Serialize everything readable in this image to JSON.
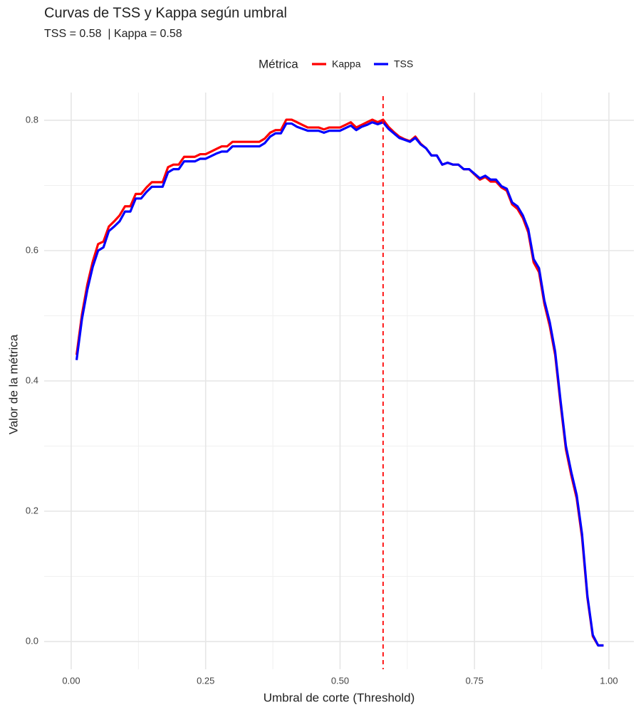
{
  "chart_data": {
    "type": "line",
    "title": "Curvas de TSS y Kappa según umbral",
    "subtitle": "TSS = 0.58  | Kappa = 0.58",
    "x_label": "Umbral de corte (Threshold)",
    "y_label": "Valor de la métrica",
    "legend_title": "Métrica",
    "legend_position": "top",
    "x": [
      0.01,
      0.02,
      0.03,
      0.04,
      0.05,
      0.06,
      0.07,
      0.08,
      0.09,
      0.1,
      0.11,
      0.12,
      0.13,
      0.14,
      0.15,
      0.16,
      0.17,
      0.18,
      0.19,
      0.2,
      0.21,
      0.22,
      0.23,
      0.24,
      0.25,
      0.26,
      0.27,
      0.28,
      0.29,
      0.3,
      0.31,
      0.32,
      0.33,
      0.34,
      0.35,
      0.36,
      0.37,
      0.38,
      0.39,
      0.4,
      0.41,
      0.42,
      0.43,
      0.44,
      0.45,
      0.46,
      0.47,
      0.48,
      0.49,
      0.5,
      0.51,
      0.52,
      0.53,
      0.54,
      0.55,
      0.56,
      0.57,
      0.58,
      0.59,
      0.6,
      0.61,
      0.62,
      0.63,
      0.64,
      0.65,
      0.66,
      0.67,
      0.68,
      0.69,
      0.7,
      0.71,
      0.72,
      0.73,
      0.74,
      0.75,
      0.76,
      0.77,
      0.78,
      0.79,
      0.8,
      0.81,
      0.82,
      0.83,
      0.84,
      0.85,
      0.86,
      0.87,
      0.88,
      0.89,
      0.9,
      0.91,
      0.92,
      0.93,
      0.94,
      0.95,
      0.96,
      0.97,
      0.98,
      0.99
    ],
    "series": [
      {
        "name": "Kappa",
        "color": "#ff0000",
        "values": [
          0.44,
          0.502,
          0.548,
          0.583,
          0.61,
          0.614,
          0.637,
          0.645,
          0.654,
          0.668,
          0.668,
          0.687,
          0.687,
          0.697,
          0.705,
          0.705,
          0.705,
          0.728,
          0.732,
          0.732,
          0.744,
          0.744,
          0.744,
          0.748,
          0.748,
          0.752,
          0.756,
          0.76,
          0.76,
          0.767,
          0.767,
          0.767,
          0.767,
          0.767,
          0.767,
          0.772,
          0.781,
          0.785,
          0.785,
          0.801,
          0.801,
          0.797,
          0.793,
          0.789,
          0.789,
          0.789,
          0.786,
          0.789,
          0.789,
          0.789,
          0.793,
          0.797,
          0.789,
          0.793,
          0.797,
          0.801,
          0.797,
          0.801,
          0.79,
          0.782,
          0.775,
          0.771,
          0.768,
          0.775,
          0.764,
          0.757,
          0.746,
          0.746,
          0.732,
          0.735,
          0.732,
          0.732,
          0.725,
          0.725,
          0.717,
          0.709,
          0.713,
          0.706,
          0.706,
          0.697,
          0.692,
          0.671,
          0.664,
          0.65,
          0.628,
          0.582,
          0.567,
          0.518,
          0.484,
          0.44,
          0.365,
          0.295,
          0.255,
          0.22,
          0.16,
          0.067,
          0.008,
          -0.006,
          -0.006
        ]
      },
      {
        "name": "TSS",
        "color": "#0000ff",
        "values": [
          0.432,
          0.495,
          0.54,
          0.575,
          0.6,
          0.605,
          0.63,
          0.637,
          0.645,
          0.66,
          0.66,
          0.68,
          0.68,
          0.69,
          0.698,
          0.698,
          0.698,
          0.72,
          0.725,
          0.725,
          0.737,
          0.737,
          0.737,
          0.741,
          0.741,
          0.745,
          0.749,
          0.752,
          0.752,
          0.76,
          0.76,
          0.76,
          0.76,
          0.76,
          0.76,
          0.765,
          0.775,
          0.78,
          0.78,
          0.795,
          0.795,
          0.79,
          0.787,
          0.784,
          0.784,
          0.784,
          0.781,
          0.784,
          0.784,
          0.784,
          0.788,
          0.792,
          0.785,
          0.79,
          0.793,
          0.797,
          0.794,
          0.797,
          0.787,
          0.78,
          0.773,
          0.77,
          0.767,
          0.773,
          0.763,
          0.757,
          0.746,
          0.746,
          0.732,
          0.735,
          0.732,
          0.732,
          0.725,
          0.725,
          0.718,
          0.711,
          0.715,
          0.709,
          0.709,
          0.699,
          0.695,
          0.674,
          0.668,
          0.654,
          0.633,
          0.587,
          0.573,
          0.523,
          0.49,
          0.445,
          0.37,
          0.3,
          0.26,
          0.225,
          0.165,
          0.07,
          0.01,
          -0.006,
          -0.006
        ]
      }
    ],
    "vline": {
      "value": 0.58,
      "color": "#ff0000",
      "dashed": true
    },
    "xlim": [
      -0.0503,
      1.0464
    ],
    "ylim": [
      -0.0426,
      0.8426
    ],
    "xticks": [
      {
        "value": 0,
        "label": "0.00"
      },
      0.25,
      {
        "value": 0.5,
        "label": "0.50"
      },
      0.75,
      {
        "value": 1,
        "label": "1.00"
      }
    ],
    "yticks": [
      {
        "value": 0,
        "label": "0.0"
      },
      0.2,
      0.4,
      0.6,
      0.8
    ],
    "x_minor_ticks": [
      0.125,
      0.375,
      0.625,
      0.875
    ],
    "y_minor_ticks": [
      0.1,
      0.3,
      0.5,
      0.7
    ],
    "grid": true
  }
}
